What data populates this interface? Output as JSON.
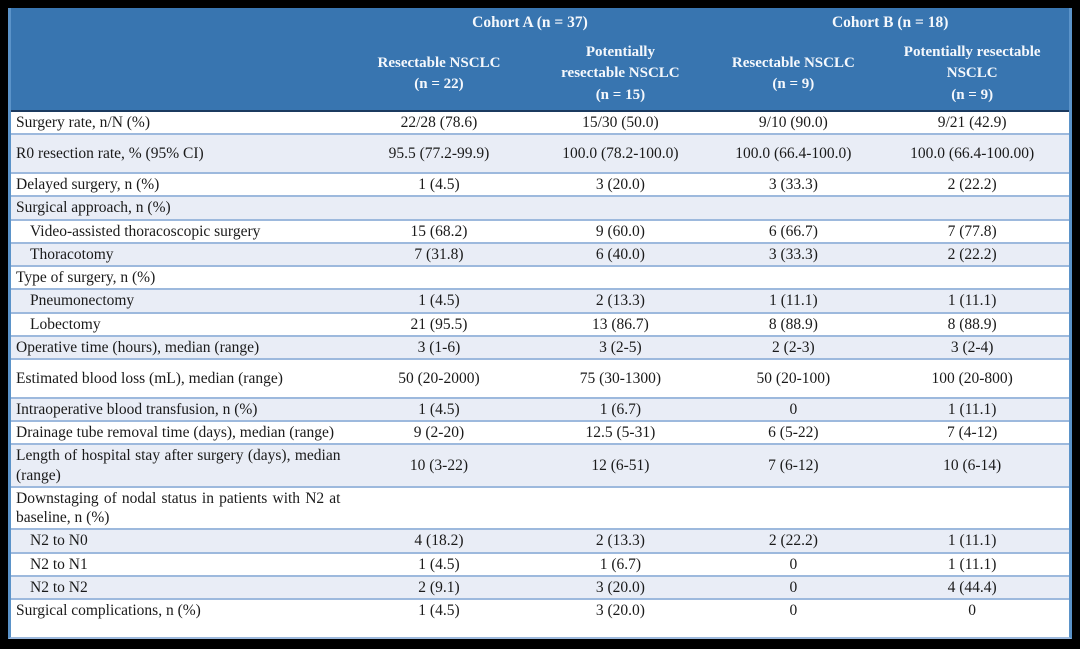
{
  "colors": {
    "header_bg": "#3875b0",
    "header_text": "#f5f8fc",
    "row_alt_bg": "#e9edf6",
    "row_divider": "#9db9dd",
    "header_divider": "#1b3a5f",
    "outer_border": "#5b93c9",
    "frame": "#000000",
    "body_text": "#1a1a1a"
  },
  "table": {
    "header": {
      "cohort_a": "Cohort A (n = 37)",
      "cohort_b": "Cohort B (n = 18)",
      "subcolumns": [
        "Resectable NSCLC\n(n = 22)",
        "Potentially\nresectable NSCLC\n(n = 15)",
        "Resectable NSCLC\n(n = 9)",
        "Potentially resectable\nNSCLC\n(n = 9)"
      ]
    },
    "rows": [
      {
        "label": "Surgery rate, n/N (%)",
        "indent": false,
        "tall": false,
        "values": [
          "22/28 (78.6)",
          "15/30 (50.0)",
          "9/10 (90.0)",
          "9/21 (42.9)"
        ]
      },
      {
        "label": "R0 resection rate, % (95% CI)",
        "indent": false,
        "tall": true,
        "values": [
          "95.5 (77.2-99.9)",
          "100.0 (78.2-100.0)",
          "100.0 (66.4-100.0)",
          "100.0 (66.4-100.00)"
        ]
      },
      {
        "label": "Delayed surgery, n (%)",
        "indent": false,
        "tall": false,
        "values": [
          "1 (4.5)",
          "3 (20.0)",
          "3 (33.3)",
          "2 (22.2)"
        ]
      },
      {
        "label": "Surgical approach, n (%)",
        "indent": false,
        "tall": false,
        "values": [
          "",
          "",
          "",
          ""
        ]
      },
      {
        "label": "Video-assisted thoracoscopic surgery",
        "indent": true,
        "tall": false,
        "values": [
          "15 (68.2)",
          "9 (60.0)",
          "6 (66.7)",
          "7 (77.8)"
        ]
      },
      {
        "label": "Thoracotomy",
        "indent": true,
        "tall": false,
        "values": [
          "7 (31.8)",
          "6 (40.0)",
          "3 (33.3)",
          "2 (22.2)"
        ]
      },
      {
        "label": "Type of surgery, n (%)",
        "indent": false,
        "tall": false,
        "values": [
          "",
          "",
          "",
          ""
        ]
      },
      {
        "label": "Pneumonectomy",
        "indent": true,
        "tall": false,
        "values": [
          "1 (4.5)",
          "2 (13.3)",
          "1 (11.1)",
          "1 (11.1)"
        ]
      },
      {
        "label": "Lobectomy",
        "indent": true,
        "tall": false,
        "values": [
          "21 (95.5)",
          "13 (86.7)",
          "8 (88.9)",
          "8 (88.9)"
        ]
      },
      {
        "label": "Operative time (hours), median (range)",
        "indent": false,
        "tall": false,
        "values": [
          "3 (1-6)",
          "3 (2-5)",
          "2 (2-3)",
          "3 (2-4)"
        ]
      },
      {
        "label": "Estimated blood loss (mL), median (range)",
        "indent": false,
        "tall": true,
        "values": [
          "50 (20-2000)",
          "75 (30-1300)",
          "50 (20-100)",
          "100 (20-800)"
        ]
      },
      {
        "label": "Intraoperative blood transfusion, n (%)",
        "indent": false,
        "tall": false,
        "values": [
          "1 (4.5)",
          "1 (6.7)",
          "0",
          "1 (11.1)"
        ]
      },
      {
        "label": "Drainage tube removal time (days), median (range)",
        "indent": false,
        "tall": false,
        "values": [
          "9 (2-20)",
          "12.5 (5-31)",
          "6 (5-22)",
          "7 (4-12)"
        ]
      },
      {
        "label": "Length of hospital stay after surgery (days), median (range)",
        "indent": false,
        "tall": false,
        "values": [
          "10 (3-22)",
          "12 (6-51)",
          "7 (6-12)",
          "10 (6-14)"
        ]
      },
      {
        "label": "Downstaging of nodal status in patients with N2 at baseline, n (%)",
        "indent": false,
        "tall": false,
        "values": [
          "",
          "",
          "",
          ""
        ]
      },
      {
        "label": "N2 to N0",
        "indent": true,
        "tall": false,
        "values": [
          "4 (18.2)",
          "2 (13.3)",
          "2 (22.2)",
          "1 (11.1)"
        ]
      },
      {
        "label": "N2 to N1",
        "indent": true,
        "tall": false,
        "values": [
          "1 (4.5)",
          "1 (6.7)",
          "0",
          "1 (11.1)"
        ]
      },
      {
        "label": "N2 to N2",
        "indent": true,
        "tall": false,
        "values": [
          "2 (9.1)",
          "3 (20.0)",
          "0",
          "4 (44.4)"
        ]
      },
      {
        "label": "Surgical complications, n (%)",
        "indent": false,
        "tall": false,
        "values": [
          "1 (4.5)",
          "3 (20.0)",
          "0",
          "0"
        ]
      }
    ]
  }
}
